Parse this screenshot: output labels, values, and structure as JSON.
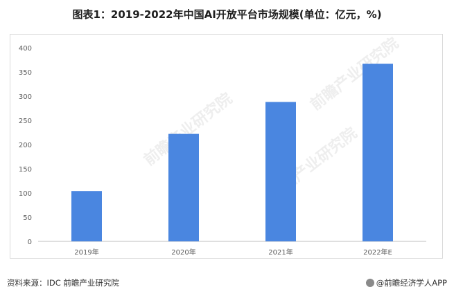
{
  "title": "图表1：2019-2022年中国AI开放平台市场规模(单位：亿元，%)",
  "source": "资料来源：IDC 前瞻产业研究院",
  "brand": "@前瞻经济学人APP",
  "watermark": "前瞻产业研究院",
  "colors": {
    "bar": "#4a86e0"
  },
  "chart_data": {
    "type": "bar",
    "title": "图表1：2019-2022年中国AI开放平台市场规模(单位：亿元，%)",
    "categories": [
      "2019年",
      "2020年",
      "2021年",
      "2022年E"
    ],
    "values": [
      104,
      222,
      288,
      367
    ],
    "ylim": [
      0,
      400
    ],
    "yticks": [
      0,
      50,
      100,
      150,
      200,
      250,
      300,
      350,
      400
    ],
    "xlabel": "",
    "ylabel": "",
    "grid": false,
    "legend": "none"
  }
}
